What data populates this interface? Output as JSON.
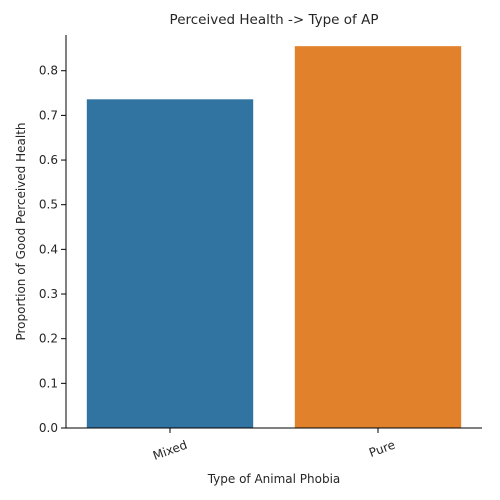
{
  "chart_data": {
    "type": "bar",
    "title": "Perceived Health -> Type of AP",
    "xlabel": "Type of Animal Phobia",
    "ylabel": "Proportion of Good Perceived Health",
    "categories": [
      "Mixed",
      "Pure"
    ],
    "values": [
      0.736,
      0.855
    ],
    "colors": [
      "#3274a1",
      "#e1812c"
    ],
    "ylim": [
      0,
      0.88
    ],
    "yticks": [
      0.0,
      0.1,
      0.2,
      0.3,
      0.4,
      0.5,
      0.6,
      0.7,
      0.8
    ],
    "ytick_labels": [
      "0.0",
      "0.1",
      "0.2",
      "0.3",
      "0.4",
      "0.5",
      "0.6",
      "0.7",
      "0.8"
    ],
    "xtick_rotation": 20,
    "grid": false,
    "legend": "none"
  }
}
